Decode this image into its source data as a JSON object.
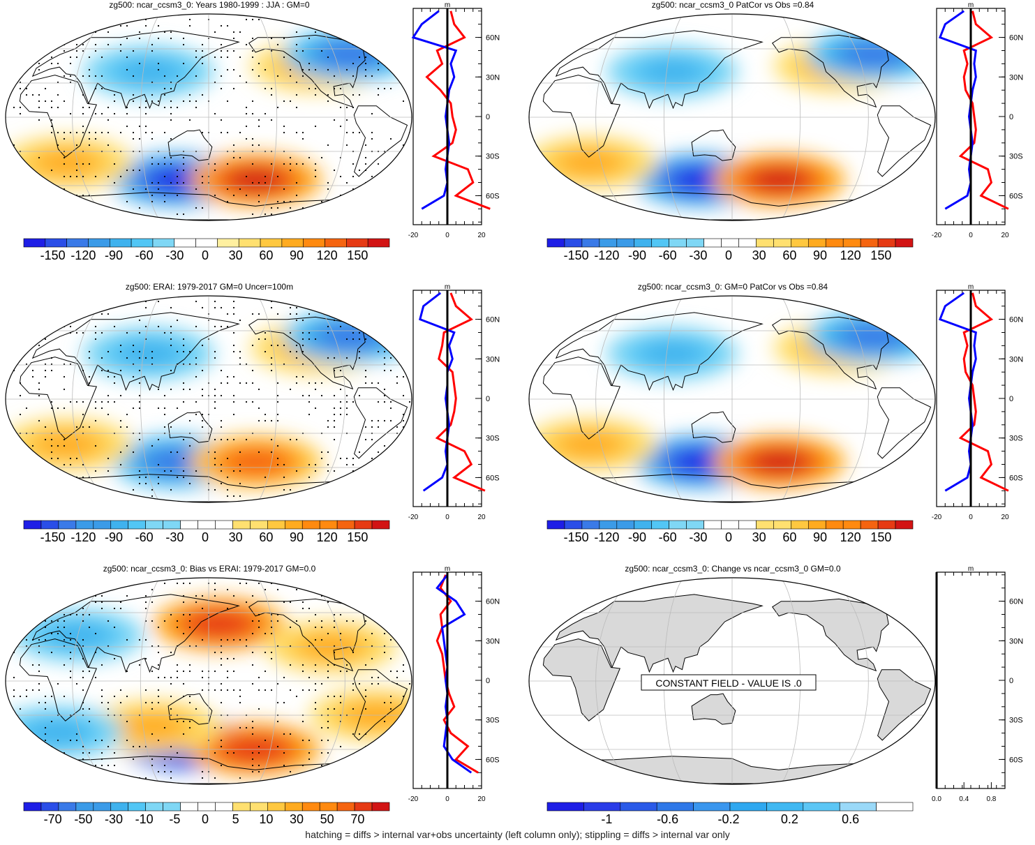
{
  "footnote": "hatching = diffs > internal var+obs uncertainty (left column only); stippling = diffs > internal var only",
  "palettes": {
    "diverging": [
      "#1e1ee6",
      "#2a4ee8",
      "#3a7ae8",
      "#3b9be8",
      "#3fb2ee",
      "#52c6f5",
      "#7fd7f5",
      "#ffffff",
      "#ffffff",
      "#fff0a0",
      "#ffe070",
      "#ffc840",
      "#ffab20",
      "#ff8a10",
      "#f56410",
      "#e63a14",
      "#d21414"
    ],
    "land": "#d9d9d9",
    "profile_line_1": "#ff0000",
    "profile_line_2": "#0000ff",
    "grid": "#bbbbbb"
  },
  "panels": [
    {
      "id": "model-clim",
      "title": "zg500: ncar_ccsm3_0: Years 1980-1999 : JJA : GM=0",
      "stippling": true,
      "colorbar_labels": [
        "-150",
        "-120",
        "-90",
        "-60",
        "-30",
        "0",
        "30",
        "60",
        "90",
        "120",
        "150"
      ],
      "colorbar_ncolors": 17,
      "profile": {
        "title": "m",
        "x_ticks": [
          "-20",
          "0",
          "20"
        ],
        "lat_ticks": [
          "60N",
          "30N",
          "0",
          "30S",
          "60S"
        ]
      }
    },
    {
      "id": "model-smooth",
      "title": "zg500: ncar_ccsm3_0 PatCor vs Obs =0.84",
      "stippling": false,
      "colorbar_labels": [
        "-150",
        "-120",
        "-90",
        "-60",
        "-30",
        "0",
        "30",
        "60",
        "90",
        "120",
        "150"
      ],
      "colorbar_ncolors": 21,
      "profile": {
        "title": "m",
        "x_ticks": [
          "-20",
          "0",
          "20"
        ],
        "lat_ticks": [
          "60N",
          "30N",
          "0",
          "30S",
          "60S"
        ]
      }
    },
    {
      "id": "obs-clim",
      "title": "zg500: ERAI: 1979-2017 GM=0 Uncer=100m",
      "stippling": true,
      "colorbar_labels": [
        "-150",
        "-120",
        "-90",
        "-60",
        "-30",
        "0",
        "30",
        "60",
        "90",
        "120",
        "150"
      ],
      "colorbar_ncolors": 21,
      "profile": {
        "title": "m",
        "x_ticks": [
          "-20",
          "0",
          "20"
        ],
        "lat_ticks": [
          "60N",
          "30N",
          "0",
          "30S",
          "60S"
        ]
      }
    },
    {
      "id": "model-obs-smooth",
      "title": "zg500: ncar_ccsm3_0: GM=0 PatCor vs Obs =0.84",
      "stippling": false,
      "colorbar_labels": [
        "-150",
        "-120",
        "-90",
        "-60",
        "-30",
        "0",
        "30",
        "60",
        "90",
        "120",
        "150"
      ],
      "colorbar_ncolors": 21,
      "profile": {
        "title": "m",
        "x_ticks": [
          "-20",
          "0",
          "20"
        ],
        "lat_ticks": [
          "60N",
          "30N",
          "0",
          "30S",
          "60S"
        ]
      }
    },
    {
      "id": "bias",
      "title": "zg500: ncar_ccsm3_0: Bias vs ERAI: 1979-2017 GM=0.0",
      "stippling": true,
      "colorbar_labels": [
        "-70",
        "-50",
        "-30",
        "-10",
        "-5",
        "0",
        "5",
        "10",
        "30",
        "50",
        "70"
      ],
      "colorbar_ncolors": 21,
      "profile": {
        "title": "m",
        "x_ticks": [
          "-20",
          "0",
          "20"
        ],
        "lat_ticks": [
          "60N",
          "30N",
          "0",
          "30S",
          "60S"
        ]
      }
    },
    {
      "id": "change",
      "title": "zg500: ncar_ccsm3_0: Change vs ncar_ccsm3_0 GM=0.0",
      "stippling": false,
      "constant_label": "CONSTANT FIELD - VALUE IS .0",
      "colorbar_labels": [
        "-1",
        "-0.6",
        "-0.2",
        "0.2",
        "0.6"
      ],
      "colorbar_ncolors": 10,
      "profile": {
        "title": "m",
        "x_ticks": [
          "0.0",
          "0.4",
          "0.8"
        ],
        "lat_ticks": [
          "60N",
          "30N",
          "0",
          "30S",
          "60S"
        ]
      }
    }
  ],
  "chart_data": [
    {
      "type": "heatmap",
      "title": "zg500: ncar_ccsm3_0: Years 1980-1999 : JJA : GM=0",
      "projection": "Robinson, Pacific-centred",
      "colorbar": [
        -150,
        -120,
        -90,
        -60,
        -30,
        0,
        30,
        60,
        90,
        120,
        150
      ],
      "features": [
        {
          "lon": 120,
          "lat": -55,
          "value": -120
        },
        {
          "lon": 195,
          "lat": -55,
          "value": 120
        },
        {
          "lon": 20,
          "lat": -40,
          "value": 60
        },
        {
          "lon": 250,
          "lat": 45,
          "value": 60
        },
        {
          "lon": 95,
          "lat": 40,
          "value": -60
        },
        {
          "lon": 285,
          "lat": 55,
          "value": -90
        }
      ],
      "profile": {
        "lat": [
          80,
          70,
          60,
          50,
          40,
          30,
          20,
          10,
          0,
          -10,
          -20,
          -30,
          -40,
          -50,
          -60,
          -70
        ],
        "series": [
          {
            "values": [
              2,
              4,
              10,
              -6,
              -3,
              -12,
              -4,
              2,
              3,
              5,
              3,
              -8,
              12,
              15,
              5,
              25
            ]
          },
          {
            "values": [
              -5,
              -15,
              -20,
              5,
              2,
              4,
              1,
              0,
              -1,
              0,
              1,
              0,
              -1,
              0,
              -2,
              -15
            ]
          }
        ],
        "xlim": [
          -20,
          20
        ]
      }
    },
    {
      "type": "heatmap",
      "title": "zg500: ncar_ccsm3_0 PatCor vs Obs =0.84",
      "colorbar": [
        -150,
        -120,
        -90,
        -60,
        -30,
        0,
        30,
        60,
        90,
        120,
        150
      ],
      "features": [
        {
          "lon": 120,
          "lat": -55,
          "value": -120
        },
        {
          "lon": 195,
          "lat": -55,
          "value": 120
        },
        {
          "lon": 20,
          "lat": -40,
          "value": 60
        },
        {
          "lon": 250,
          "lat": 45,
          "value": 60
        },
        {
          "lon": 95,
          "lat": 40,
          "value": -60
        },
        {
          "lon": 285,
          "lat": 55,
          "value": -90
        }
      ],
      "profile": {
        "lat": [
          80,
          70,
          60,
          50,
          40,
          30,
          20,
          10,
          0,
          -10,
          -20,
          -30,
          -40,
          -50,
          -60,
          -70
        ],
        "series": [
          {
            "values": [
              1,
              3,
              12,
              -4,
              -2,
              -4,
              -3,
              1,
              2,
              3,
              2,
              -6,
              10,
              12,
              6,
              22
            ]
          },
          {
            "values": [
              -4,
              -15,
              -18,
              3,
              2,
              3,
              1,
              0,
              -1,
              0,
              1,
              0,
              -1,
              0,
              -2,
              -15
            ]
          }
        ],
        "xlim": [
          -20,
          20
        ]
      }
    },
    {
      "type": "heatmap",
      "title": "zg500: ERAI: 1979-2017 GM=0 Uncer=100m",
      "colorbar": [
        -150,
        -120,
        -90,
        -60,
        -30,
        0,
        30,
        60,
        90,
        120,
        150
      ],
      "features": [
        {
          "lon": 120,
          "lat": -55,
          "value": -90
        },
        {
          "lon": 195,
          "lat": -55,
          "value": 90
        },
        {
          "lon": 20,
          "lat": -40,
          "value": 60
        },
        {
          "lon": 250,
          "lat": 45,
          "value": 60
        },
        {
          "lon": 95,
          "lat": 40,
          "value": -60
        },
        {
          "lon": 285,
          "lat": 55,
          "value": -90
        }
      ],
      "profile": {
        "lat": [
          80,
          70,
          60,
          50,
          40,
          30,
          20,
          10,
          0,
          -10,
          -20,
          -30,
          -40,
          -50,
          -60,
          -70
        ],
        "series": [
          {
            "values": [
              2,
              5,
              14,
              -2,
              -3,
              -5,
              3,
              4,
              5,
              4,
              2,
              -6,
              10,
              14,
              4,
              22
            ]
          },
          {
            "values": [
              -4,
              -14,
              -16,
              4,
              1,
              3,
              0,
              0,
              -1,
              0,
              1,
              0,
              -1,
              0,
              -3,
              -14
            ]
          }
        ],
        "xlim": [
          -20,
          20
        ]
      }
    },
    {
      "type": "heatmap",
      "title": "zg500: ncar_ccsm3_0: GM=0 PatCor vs Obs =0.84",
      "colorbar": [
        -150,
        -120,
        -90,
        -60,
        -30,
        0,
        30,
        60,
        90,
        120,
        150
      ],
      "features": [
        {
          "lon": 120,
          "lat": -55,
          "value": -120
        },
        {
          "lon": 195,
          "lat": -55,
          "value": 120
        },
        {
          "lon": 20,
          "lat": -40,
          "value": 60
        },
        {
          "lon": 250,
          "lat": 45,
          "value": 60
        },
        {
          "lon": 95,
          "lat": 40,
          "value": -60
        },
        {
          "lon": 285,
          "lat": 55,
          "value": -90
        }
      ],
      "profile": {
        "lat": [
          80,
          70,
          60,
          50,
          40,
          30,
          20,
          10,
          0,
          -10,
          -20,
          -30,
          -40,
          -50,
          -60,
          -70
        ],
        "series": [
          {
            "values": [
              1,
              3,
              12,
              -4,
              -2,
              -4,
              -3,
              1,
              2,
              3,
              2,
              -6,
              10,
              12,
              6,
              22
            ]
          },
          {
            "values": [
              -4,
              -15,
              -18,
              3,
              2,
              3,
              1,
              0,
              -1,
              0,
              1,
              0,
              -1,
              0,
              -2,
              -15
            ]
          }
        ],
        "xlim": [
          -20,
          20
        ]
      }
    },
    {
      "type": "heatmap",
      "title": "zg500: ncar_ccsm3_0: Bias vs ERAI: 1979-2017 GM=0.0",
      "colorbar": [
        -70,
        -50,
        -30,
        -10,
        -5,
        0,
        5,
        10,
        30,
        50,
        70
      ],
      "features": [
        {
          "lon": 130,
          "lat": -55,
          "value": -70
        },
        {
          "lon": 195,
          "lat": -60,
          "value": 50
        },
        {
          "lon": 100,
          "lat": -40,
          "value": 30
        },
        {
          "lon": 160,
          "lat": 50,
          "value": 50
        },
        {
          "lon": 30,
          "lat": 40,
          "value": -30
        },
        {
          "lon": 260,
          "lat": 30,
          "value": 30
        },
        {
          "lon": 300,
          "lat": -30,
          "value": 30
        },
        {
          "lon": 10,
          "lat": -45,
          "value": -30
        }
      ],
      "profile": {
        "lat": [
          80,
          70,
          60,
          50,
          40,
          30,
          20,
          10,
          0,
          -10,
          -20,
          -30,
          -40,
          -50,
          -60,
          -70
        ],
        "series": [
          {
            "values": [
              -1,
              -4,
              2,
              -4,
              -3,
              -6,
              -3,
              -2,
              -1,
              1,
              4,
              -2,
              2,
              12,
              5,
              18
            ]
          },
          {
            "values": [
              0,
              -6,
              5,
              10,
              -3,
              -2,
              -1,
              0,
              -1,
              0,
              -1,
              0,
              -1,
              -2,
              3,
              14
            ]
          }
        ],
        "xlim": [
          -20,
          20
        ]
      }
    },
    {
      "type": "heatmap",
      "title": "zg500: ncar_ccsm3_0: Change vs ncar_ccsm3_0 GM=0.0",
      "colorbar": [
        -1,
        -0.6,
        -0.2,
        0.2,
        0.6
      ],
      "constant_value": 0,
      "profile": {
        "lat": [
          80,
          70,
          60,
          50,
          40,
          30,
          20,
          10,
          0,
          -10,
          -20,
          -30,
          -40,
          -50,
          -60,
          -70
        ],
        "series": [
          {
            "values": [
              0,
              0,
              0,
              0,
              0,
              0,
              0,
              0,
              0,
              0,
              0,
              0,
              0,
              0,
              0,
              0
            ]
          }
        ],
        "xlim": [
          0,
          1
        ]
      }
    }
  ]
}
